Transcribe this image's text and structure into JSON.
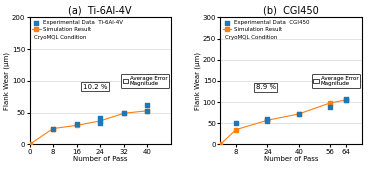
{
  "chart_data": [
    {
      "type": "line",
      "title": "(a)  Ti-6Al-4V",
      "x_label": "Number of Pass",
      "y_label": "Flank Wear (μm)",
      "xlim": [
        0,
        48
      ],
      "xticks": [
        0,
        8,
        16,
        24,
        32,
        40
      ],
      "ylim": [
        0,
        200
      ],
      "yticks": [
        0,
        50,
        100,
        150,
        200
      ],
      "grid": "y",
      "legend": "upper left",
      "series": [
        {
          "name": "Experimental Data  Ti-6Al-4V",
          "type": "scatter",
          "marker": "square",
          "x": [
            8,
            16,
            24,
            24,
            32,
            40,
            40
          ],
          "values": [
            25,
            32,
            33,
            42,
            50,
            62,
            52
          ]
        },
        {
          "name": "Simulation Result",
          "type": "line",
          "marker": "square",
          "line_style": "solid",
          "x": [
            0,
            8,
            16,
            24,
            32,
            40
          ],
          "values": [
            0,
            25,
            30,
            37,
            49,
            53
          ]
        }
      ],
      "annotations": [
        {
          "text": "CryoMQL Condition"
        },
        {
          "text": "Average Error\nMagnitude"
        },
        {
          "text": "10.2 %",
          "x": 18,
          "y": 88
        }
      ]
    },
    {
      "type": "line",
      "title": "(b)  CGI450",
      "x_label": "Number of Pass",
      "y_label": "Flank Wear (μm)",
      "xlim": [
        0,
        72
      ],
      "xticks": [
        8,
        24,
        40,
        56,
        64
      ],
      "ylim": [
        0,
        300
      ],
      "yticks": [
        0,
        50,
        100,
        150,
        200,
        250,
        300
      ],
      "grid": "y",
      "legend": "upper left",
      "series": [
        {
          "name": "Experimental Data  CGI450",
          "type": "scatter",
          "marker": "square",
          "x": [
            8,
            24,
            24,
            40,
            56,
            64,
            64
          ],
          "values": [
            50,
            60,
            55,
            72,
            88,
            105,
            108
          ]
        },
        {
          "name": "Simulation Result",
          "type": "line",
          "marker": "square",
          "line_style": "solid",
          "x": [
            0,
            8,
            24,
            40,
            56,
            64
          ],
          "values": [
            0,
            35,
            57,
            72,
            98,
            105
          ]
        }
      ],
      "annotations": [
        {
          "text": "CryoMQL Condition"
        },
        {
          "text": "Average Error\nMagnitude"
        },
        {
          "text": "8.9 %",
          "x": 18,
          "y": 130
        }
      ]
    }
  ]
}
